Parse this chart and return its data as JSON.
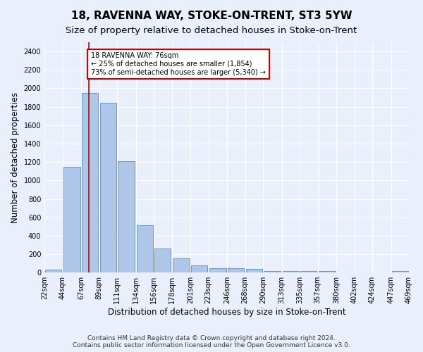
{
  "title": "18, RAVENNA WAY, STOKE-ON-TRENT, ST3 5YW",
  "subtitle": "Size of property relative to detached houses in Stoke-on-Trent",
  "xlabel": "Distribution of detached houses by size in Stoke-on-Trent",
  "ylabel": "Number of detached properties",
  "bin_edges": [
    22,
    44,
    67,
    89,
    111,
    134,
    156,
    178,
    201,
    223,
    246,
    268,
    290,
    313,
    335,
    357,
    380,
    402,
    424,
    447,
    469
  ],
  "bin_labels": [
    "22sqm",
    "44sqm",
    "67sqm",
    "89sqm",
    "111sqm",
    "134sqm",
    "156sqm",
    "178sqm",
    "201sqm",
    "223sqm",
    "246sqm",
    "268sqm",
    "290sqm",
    "313sqm",
    "335sqm",
    "357sqm",
    "380sqm",
    "402sqm",
    "424sqm",
    "447sqm",
    "469sqm"
  ],
  "bar_heights": [
    30,
    1150,
    1950,
    1840,
    1210,
    510,
    265,
    155,
    80,
    50,
    45,
    40,
    20,
    18,
    15,
    20,
    5,
    5,
    5,
    20
  ],
  "bar_color": "#aec6e8",
  "bar_edge_color": "#5b8db8",
  "red_line_x": 76,
  "annotation_line1": "18 RAVENNA WAY: 76sqm",
  "annotation_line2": "← 25% of detached houses are smaller (1,854)",
  "annotation_line3": "73% of semi-detached houses are larger (5,340) →",
  "annotation_box_color": "#ffffff",
  "annotation_box_edge": "#cc0000",
  "ylim": [
    0,
    2500
  ],
  "yticks": [
    0,
    200,
    400,
    600,
    800,
    1000,
    1200,
    1400,
    1600,
    1800,
    2000,
    2200,
    2400
  ],
  "footer1": "Contains HM Land Registry data © Crown copyright and database right 2024.",
  "footer2": "Contains public sector information licensed under the Open Government Licence v3.0.",
  "bg_color": "#eaf0fb",
  "plot_bg_color": "#eaf0fb",
  "grid_color": "#ffffff",
  "title_fontsize": 11,
  "subtitle_fontsize": 9.5,
  "axis_label_fontsize": 8.5,
  "tick_fontsize": 7,
  "footer_fontsize": 6.5
}
